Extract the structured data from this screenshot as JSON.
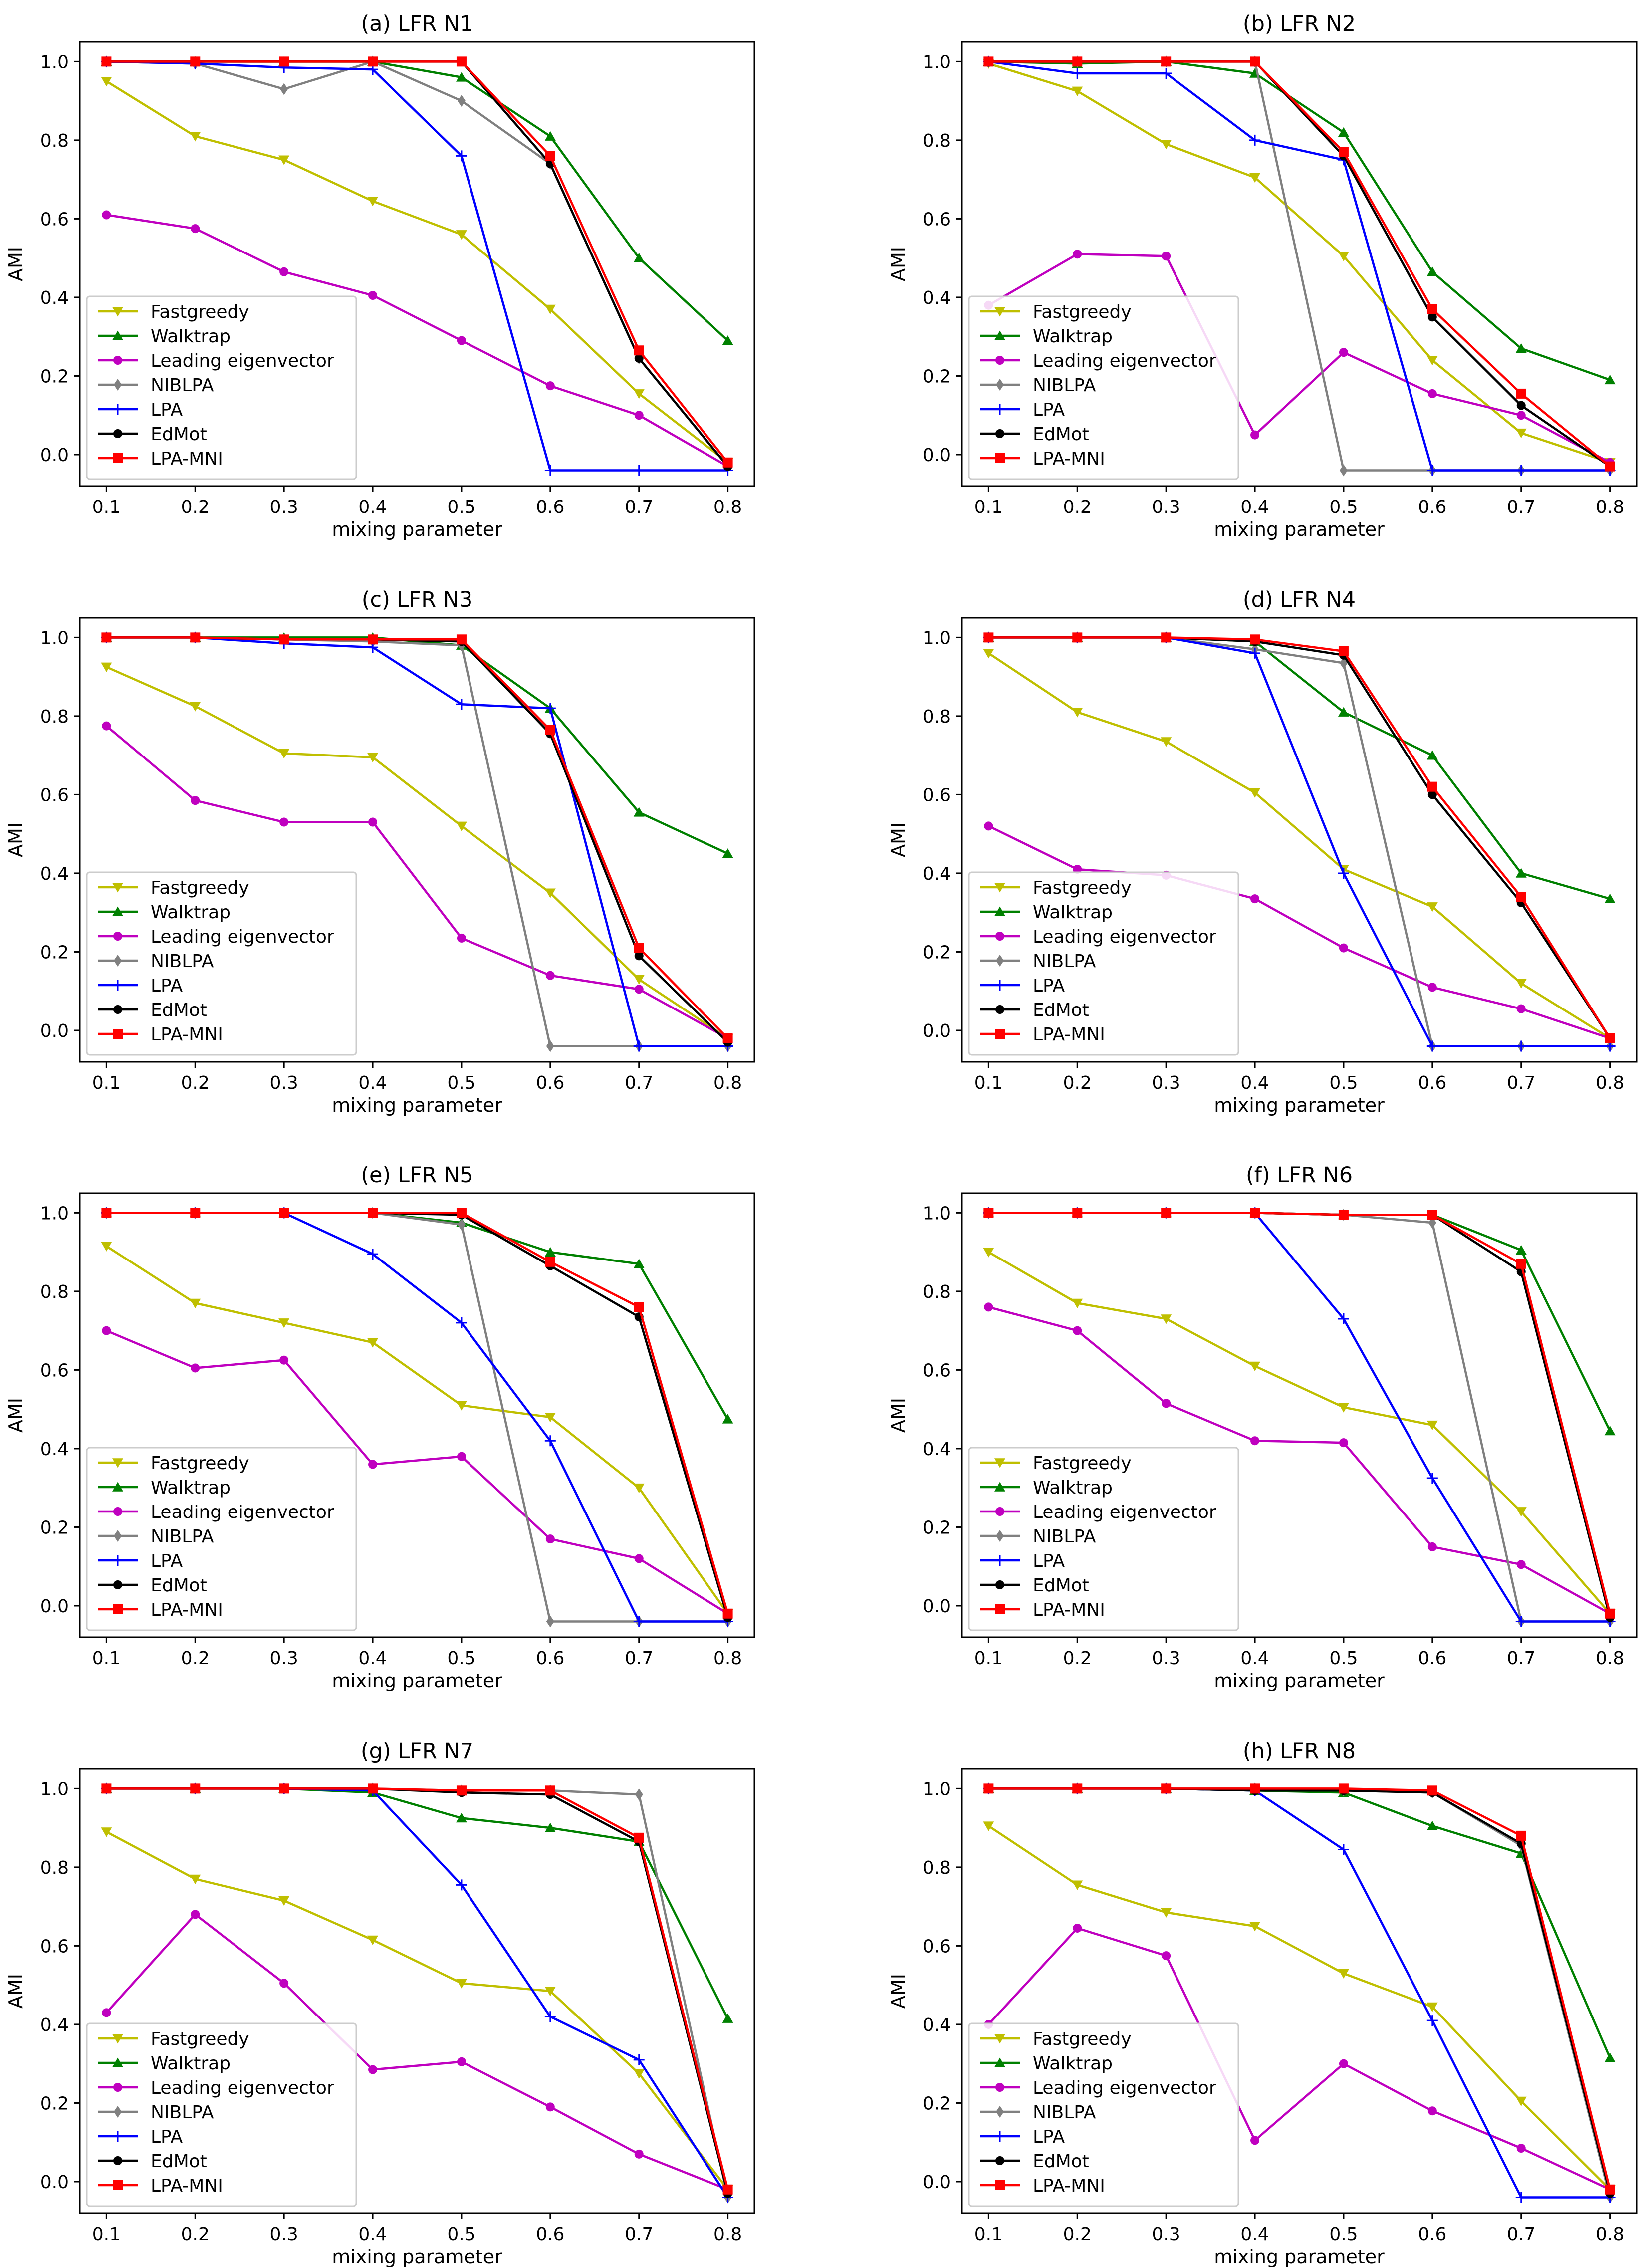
{
  "figure": {
    "rows": 4,
    "cols": 2,
    "legend_position": "lower-left"
  },
  "colors": {
    "Fastgreedy": "#bfbf00",
    "Walktrap": "#008000",
    "Leading eigenvector": "#bf00bf",
    "NIBLPA": "#808080",
    "LPA": "#0000ff",
    "EdMot": "#000000",
    "LPA-MNI": "#ff0000"
  },
  "markers": {
    "Fastgreedy": "triangle-down",
    "Walktrap": "triangle-up",
    "Leading eigenvector": "circle",
    "NIBLPA": "diamond",
    "LPA": "plus",
    "EdMot": "circle",
    "LPA-MNI": "square"
  },
  "chart_data": [
    {
      "type": "line",
      "title": "(a) LFR N1",
      "xlabel": "mixing parameter",
      "ylabel": "AMI",
      "x": [
        0.1,
        0.2,
        0.3,
        0.4,
        0.5,
        0.6,
        0.7,
        0.8
      ],
      "xlim": [
        0.07,
        0.83
      ],
      "ylim": [
        -0.08,
        1.05
      ],
      "xticks": [
        "0.1",
        "0.2",
        "0.3",
        "0.4",
        "0.5",
        "0.6",
        "0.7",
        "0.8"
      ],
      "yticks": [
        "0.0",
        "0.2",
        "0.4",
        "0.6",
        "0.8",
        "1.0"
      ],
      "legend": "lower-left",
      "series": [
        {
          "name": "Fastgreedy",
          "values": [
            0.95,
            0.81,
            0.75,
            0.645,
            0.56,
            0.37,
            0.155,
            -0.02
          ]
        },
        {
          "name": "Walktrap",
          "values": [
            1.0,
            1.0,
            1.0,
            1.0,
            0.96,
            0.81,
            0.5,
            0.29
          ]
        },
        {
          "name": "Leading eigenvector",
          "values": [
            0.61,
            0.575,
            0.465,
            0.405,
            0.29,
            0.175,
            0.1,
            -0.03
          ]
        },
        {
          "name": "NIBLPA",
          "values": [
            1.0,
            0.995,
            0.93,
            1.0,
            0.9,
            0.74,
            0.245,
            -0.03
          ]
        },
        {
          "name": "LPA",
          "values": [
            1.0,
            0.995,
            0.985,
            0.98,
            0.76,
            -0.04,
            -0.04,
            -0.04
          ]
        },
        {
          "name": "EdMot",
          "values": [
            1.0,
            1.0,
            1.0,
            1.0,
            1.0,
            0.74,
            0.245,
            -0.03
          ]
        },
        {
          "name": "LPA-MNI",
          "values": [
            1.0,
            1.0,
            1.0,
            1.0,
            1.0,
            0.76,
            0.265,
            -0.02
          ]
        }
      ]
    },
    {
      "type": "line",
      "title": "(b) LFR N2",
      "xlabel": "mixing parameter",
      "ylabel": "AMI",
      "x": [
        0.1,
        0.2,
        0.3,
        0.4,
        0.5,
        0.6,
        0.7,
        0.8
      ],
      "xlim": [
        0.07,
        0.83
      ],
      "ylim": [
        -0.08,
        1.05
      ],
      "xticks": [
        "0.1",
        "0.2",
        "0.3",
        "0.4",
        "0.5",
        "0.6",
        "0.7",
        "0.8"
      ],
      "yticks": [
        "0.0",
        "0.2",
        "0.4",
        "0.6",
        "0.8",
        "1.0"
      ],
      "legend": "lower-left",
      "series": [
        {
          "name": "Fastgreedy",
          "values": [
            0.995,
            0.925,
            0.79,
            0.705,
            0.505,
            0.24,
            0.055,
            -0.02
          ]
        },
        {
          "name": "Walktrap",
          "values": [
            1.0,
            0.995,
            1.0,
            0.97,
            0.82,
            0.465,
            0.27,
            0.19
          ]
        },
        {
          "name": "Leading eigenvector",
          "values": [
            0.38,
            0.51,
            0.505,
            0.05,
            0.26,
            0.155,
            0.1,
            -0.02
          ]
        },
        {
          "name": "NIBLPA",
          "values": [
            1.0,
            1.0,
            1.0,
            1.0,
            -0.04,
            -0.04,
            -0.04,
            -0.04
          ]
        },
        {
          "name": "LPA",
          "values": [
            1.0,
            0.97,
            0.97,
            0.8,
            0.75,
            -0.04,
            -0.04,
            -0.04
          ]
        },
        {
          "name": "EdMot",
          "values": [
            1.0,
            1.0,
            1.0,
            1.0,
            0.76,
            0.35,
            0.125,
            -0.03
          ]
        },
        {
          "name": "LPA-MNI",
          "values": [
            1.0,
            1.0,
            1.0,
            1.0,
            0.77,
            0.37,
            0.155,
            -0.03
          ]
        }
      ]
    },
    {
      "type": "line",
      "title": "(c) LFR N3",
      "xlabel": "mixing parameter",
      "ylabel": "AMI",
      "x": [
        0.1,
        0.2,
        0.3,
        0.4,
        0.5,
        0.6,
        0.7,
        0.8
      ],
      "xlim": [
        0.07,
        0.83
      ],
      "ylim": [
        -0.08,
        1.05
      ],
      "xticks": [
        "0.1",
        "0.2",
        "0.3",
        "0.4",
        "0.5",
        "0.6",
        "0.7",
        "0.8"
      ],
      "yticks": [
        "0.0",
        "0.2",
        "0.4",
        "0.6",
        "0.8",
        "1.0"
      ],
      "legend": "lower-left",
      "series": [
        {
          "name": "Fastgreedy",
          "values": [
            0.925,
            0.825,
            0.705,
            0.695,
            0.52,
            0.35,
            0.13,
            -0.02
          ]
        },
        {
          "name": "Walktrap",
          "values": [
            1.0,
            1.0,
            1.0,
            1.0,
            0.98,
            0.82,
            0.555,
            0.45
          ]
        },
        {
          "name": "Leading eigenvector",
          "values": [
            0.775,
            0.585,
            0.53,
            0.53,
            0.235,
            0.14,
            0.105,
            -0.02
          ]
        },
        {
          "name": "NIBLPA",
          "values": [
            1.0,
            1.0,
            0.995,
            0.99,
            0.98,
            -0.04,
            -0.04,
            -0.04
          ]
        },
        {
          "name": "LPA",
          "values": [
            1.0,
            1.0,
            0.985,
            0.975,
            0.83,
            0.82,
            -0.04,
            -0.04
          ]
        },
        {
          "name": "EdMot",
          "values": [
            1.0,
            1.0,
            0.995,
            0.995,
            0.99,
            0.755,
            0.19,
            -0.03
          ]
        },
        {
          "name": "LPA-MNI",
          "values": [
            1.0,
            1.0,
            0.995,
            0.995,
            0.995,
            0.765,
            0.21,
            -0.02
          ]
        }
      ]
    },
    {
      "type": "line",
      "title": "(d) LFR N4",
      "xlabel": "mixing parameter",
      "ylabel": "AMI",
      "x": [
        0.1,
        0.2,
        0.3,
        0.4,
        0.5,
        0.6,
        0.7,
        0.8
      ],
      "xlim": [
        0.07,
        0.83
      ],
      "ylim": [
        -0.08,
        1.05
      ],
      "xticks": [
        "0.1",
        "0.2",
        "0.3",
        "0.4",
        "0.5",
        "0.6",
        "0.7",
        "0.8"
      ],
      "yticks": [
        "0.0",
        "0.2",
        "0.4",
        "0.6",
        "0.8",
        "1.0"
      ],
      "legend": "lower-left",
      "series": [
        {
          "name": "Fastgreedy",
          "values": [
            0.96,
            0.81,
            0.735,
            0.605,
            0.41,
            0.315,
            0.12,
            -0.02
          ]
        },
        {
          "name": "Walktrap",
          "values": [
            1.0,
            1.0,
            1.0,
            0.99,
            0.81,
            0.7,
            0.4,
            0.335
          ]
        },
        {
          "name": "Leading eigenvector",
          "values": [
            0.52,
            0.41,
            0.395,
            0.335,
            0.21,
            0.11,
            0.055,
            -0.02
          ]
        },
        {
          "name": "NIBLPA",
          "values": [
            1.0,
            1.0,
            1.0,
            0.97,
            0.935,
            -0.04,
            -0.04,
            -0.04
          ]
        },
        {
          "name": "LPA",
          "values": [
            1.0,
            1.0,
            1.0,
            0.96,
            0.4,
            -0.04,
            -0.04,
            -0.04
          ]
        },
        {
          "name": "EdMot",
          "values": [
            1.0,
            1.0,
            1.0,
            0.99,
            0.955,
            0.6,
            0.325,
            -0.02
          ]
        },
        {
          "name": "LPA-MNI",
          "values": [
            1.0,
            1.0,
            1.0,
            0.995,
            0.965,
            0.62,
            0.34,
            -0.02
          ]
        }
      ]
    },
    {
      "type": "line",
      "title": "(e) LFR N5",
      "xlabel": "mixing parameter",
      "ylabel": "AMI",
      "x": [
        0.1,
        0.2,
        0.3,
        0.4,
        0.5,
        0.6,
        0.7,
        0.8
      ],
      "xlim": [
        0.07,
        0.83
      ],
      "ylim": [
        -0.08,
        1.05
      ],
      "xticks": [
        "0.1",
        "0.2",
        "0.3",
        "0.4",
        "0.5",
        "0.6",
        "0.7",
        "0.8"
      ],
      "yticks": [
        "0.0",
        "0.2",
        "0.4",
        "0.6",
        "0.8",
        "1.0"
      ],
      "legend": "lower-left",
      "series": [
        {
          "name": "Fastgreedy",
          "values": [
            0.915,
            0.77,
            0.72,
            0.67,
            0.51,
            0.48,
            0.3,
            -0.02
          ]
        },
        {
          "name": "Walktrap",
          "values": [
            1.0,
            1.0,
            1.0,
            1.0,
            0.975,
            0.9,
            0.87,
            0.475
          ]
        },
        {
          "name": "Leading eigenvector",
          "values": [
            0.7,
            0.605,
            0.625,
            0.36,
            0.38,
            0.17,
            0.12,
            -0.02
          ]
        },
        {
          "name": "NIBLPA",
          "values": [
            1.0,
            1.0,
            1.0,
            1.0,
            0.97,
            -0.04,
            -0.04,
            -0.04
          ]
        },
        {
          "name": "LPA",
          "values": [
            1.0,
            1.0,
            1.0,
            0.895,
            0.72,
            0.42,
            -0.04,
            -0.04
          ]
        },
        {
          "name": "EdMot",
          "values": [
            1.0,
            1.0,
            1.0,
            1.0,
            0.995,
            0.865,
            0.735,
            -0.03
          ]
        },
        {
          "name": "LPA-MNI",
          "values": [
            1.0,
            1.0,
            1.0,
            1.0,
            1.0,
            0.875,
            0.76,
            -0.02
          ]
        }
      ]
    },
    {
      "type": "line",
      "title": "(f) LFR N6",
      "xlabel": "mixing parameter",
      "ylabel": "AMI",
      "x": [
        0.1,
        0.2,
        0.3,
        0.4,
        0.5,
        0.6,
        0.7,
        0.8
      ],
      "xlim": [
        0.07,
        0.83
      ],
      "ylim": [
        -0.08,
        1.05
      ],
      "xticks": [
        "0.1",
        "0.2",
        "0.3",
        "0.4",
        "0.5",
        "0.6",
        "0.7",
        "0.8"
      ],
      "yticks": [
        "0.0",
        "0.2",
        "0.4",
        "0.6",
        "0.8",
        "1.0"
      ],
      "legend": "lower-left",
      "series": [
        {
          "name": "Fastgreedy",
          "values": [
            0.9,
            0.77,
            0.73,
            0.61,
            0.505,
            0.46,
            0.24,
            -0.02
          ]
        },
        {
          "name": "Walktrap",
          "values": [
            1.0,
            1.0,
            1.0,
            1.0,
            0.995,
            0.995,
            0.905,
            0.445
          ]
        },
        {
          "name": "Leading eigenvector",
          "values": [
            0.76,
            0.7,
            0.515,
            0.42,
            0.415,
            0.15,
            0.105,
            -0.02
          ]
        },
        {
          "name": "NIBLPA",
          "values": [
            1.0,
            1.0,
            1.0,
            1.0,
            0.995,
            0.975,
            -0.04,
            -0.04
          ]
        },
        {
          "name": "LPA",
          "values": [
            1.0,
            1.0,
            1.0,
            1.0,
            0.73,
            0.325,
            -0.04,
            -0.04
          ]
        },
        {
          "name": "EdMot",
          "values": [
            1.0,
            1.0,
            1.0,
            1.0,
            0.995,
            0.995,
            0.85,
            -0.03
          ]
        },
        {
          "name": "LPA-MNI",
          "values": [
            1.0,
            1.0,
            1.0,
            1.0,
            0.995,
            0.995,
            0.87,
            -0.02
          ]
        }
      ]
    },
    {
      "type": "line",
      "title": "(g) LFR N7",
      "xlabel": "mixing parameter",
      "ylabel": "AMI",
      "x": [
        0.1,
        0.2,
        0.3,
        0.4,
        0.5,
        0.6,
        0.7,
        0.8
      ],
      "xlim": [
        0.07,
        0.83
      ],
      "ylim": [
        -0.08,
        1.05
      ],
      "xticks": [
        "0.1",
        "0.2",
        "0.3",
        "0.4",
        "0.5",
        "0.6",
        "0.7",
        "0.8"
      ],
      "yticks": [
        "0.0",
        "0.2",
        "0.4",
        "0.6",
        "0.8",
        "1.0"
      ],
      "legend": "lower-left",
      "series": [
        {
          "name": "Fastgreedy",
          "values": [
            0.89,
            0.77,
            0.715,
            0.615,
            0.505,
            0.485,
            0.275,
            -0.02
          ]
        },
        {
          "name": "Walktrap",
          "values": [
            1.0,
            1.0,
            1.0,
            0.99,
            0.925,
            0.9,
            0.865,
            0.415
          ]
        },
        {
          "name": "Leading eigenvector",
          "values": [
            0.43,
            0.68,
            0.505,
            0.285,
            0.305,
            0.19,
            0.07,
            -0.02
          ]
        },
        {
          "name": "NIBLPA",
          "values": [
            1.0,
            1.0,
            1.0,
            1.0,
            0.995,
            0.995,
            0.985,
            -0.04
          ]
        },
        {
          "name": "LPA",
          "values": [
            1.0,
            1.0,
            1.0,
            0.995,
            0.755,
            0.42,
            0.31,
            -0.04
          ]
        },
        {
          "name": "EdMot",
          "values": [
            1.0,
            1.0,
            1.0,
            1.0,
            0.99,
            0.985,
            0.865,
            -0.03
          ]
        },
        {
          "name": "LPA-MNI",
          "values": [
            1.0,
            1.0,
            1.0,
            1.0,
            0.995,
            0.995,
            0.875,
            -0.02
          ]
        }
      ]
    },
    {
      "type": "line",
      "title": "(h) LFR N8",
      "xlabel": "mixing parameter",
      "ylabel": "AMI",
      "x": [
        0.1,
        0.2,
        0.3,
        0.4,
        0.5,
        0.6,
        0.7,
        0.8
      ],
      "xlim": [
        0.07,
        0.83
      ],
      "ylim": [
        -0.08,
        1.05
      ],
      "xticks": [
        "0.1",
        "0.2",
        "0.3",
        "0.4",
        "0.5",
        "0.6",
        "0.7",
        "0.8"
      ],
      "yticks": [
        "0.0",
        "0.2",
        "0.4",
        "0.6",
        "0.8",
        "1.0"
      ],
      "legend": "lower-left",
      "series": [
        {
          "name": "Fastgreedy",
          "values": [
            0.905,
            0.755,
            0.685,
            0.65,
            0.53,
            0.445,
            0.205,
            -0.02
          ]
        },
        {
          "name": "Walktrap",
          "values": [
            1.0,
            1.0,
            1.0,
            0.995,
            0.99,
            0.905,
            0.835,
            0.315
          ]
        },
        {
          "name": "Leading eigenvector",
          "values": [
            0.4,
            0.645,
            0.575,
            0.105,
            0.3,
            0.18,
            0.085,
            -0.02
          ]
        },
        {
          "name": "NIBLPA",
          "values": [
            1.0,
            1.0,
            1.0,
            1.0,
            0.995,
            0.99,
            0.855,
            -0.04
          ]
        },
        {
          "name": "LPA",
          "values": [
            1.0,
            1.0,
            1.0,
            0.995,
            0.845,
            0.41,
            -0.04,
            -0.04
          ]
        },
        {
          "name": "EdMot",
          "values": [
            1.0,
            1.0,
            1.0,
            0.995,
            0.995,
            0.99,
            0.86,
            -0.03
          ]
        },
        {
          "name": "LPA-MNI",
          "values": [
            1.0,
            1.0,
            1.0,
            1.0,
            1.0,
            0.995,
            0.88,
            -0.02
          ]
        }
      ]
    }
  ]
}
